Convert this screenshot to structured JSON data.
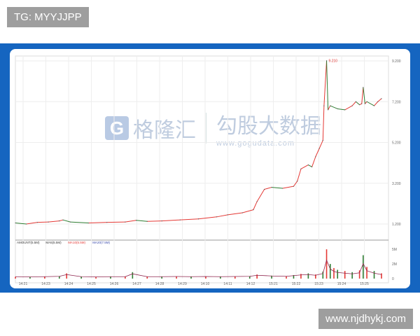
{
  "tag_label": "TG: MYYJJPP",
  "site_label": "www.njdhykj.com",
  "watermark": {
    "logo_letter": "G",
    "brand_cn": "格隆汇",
    "brand2_cn": "勾股大数据",
    "brand2_url": "www.gogudata.com"
  },
  "colors": {
    "band": "#1565c0",
    "up": "#e53935",
    "down": "#2e7d32",
    "ma_red": "#e53935",
    "ma_blue": "#3949ab"
  },
  "chart_data": [
    {
      "type": "line",
      "title": "",
      "peak_label": "9.210",
      "y_ticks": [
        "9.200",
        "7.200",
        "5.200",
        "3.200",
        "1.200"
      ],
      "ylim": [
        1.0,
        9.3
      ],
      "grid": true,
      "x_tick_labels": [
        "14:21",
        "14:23",
        "14:24",
        "14:25",
        "14:26",
        "14:27",
        "14:28",
        "14:29",
        "14:10",
        "14:11",
        "14:12",
        "15:21",
        "15:22",
        "15:23",
        "15:24",
        "15:25"
      ],
      "series": [
        {
          "x": [
            0,
            3,
            6,
            9,
            12,
            13,
            15,
            20,
            25,
            30,
            33,
            36,
            40,
            45,
            50,
            55,
            58,
            62,
            65,
            66,
            68,
            70,
            73,
            76,
            77,
            78,
            80,
            81,
            82,
            83,
            84,
            84.3,
            85,
            85.4,
            86,
            88,
            90,
            92,
            93,
            94,
            94.6,
            95,
            95.5,
            96,
            98,
            99,
            100
          ],
          "y": [
            1.25,
            1.2,
            1.28,
            1.3,
            1.35,
            1.4,
            1.3,
            1.25,
            1.28,
            1.3,
            1.38,
            1.33,
            1.35,
            1.4,
            1.45,
            1.55,
            1.65,
            1.75,
            1.9,
            2.3,
            2.9,
            3.0,
            2.95,
            3.05,
            3.3,
            3.9,
            4.1,
            4.0,
            4.5,
            4.9,
            5.3,
            7.0,
            9.21,
            6.8,
            7.0,
            6.85,
            6.8,
            7.0,
            7.2,
            7.05,
            7.1,
            7.9,
            7.1,
            7.2,
            7.0,
            7.2,
            7.35
          ]
        }
      ]
    },
    {
      "type": "bar",
      "legend": [
        "AMOUNT",
        "MA(5)",
        "MA(10)",
        "MA(20)"
      ],
      "legend_text": [
        "AMOUNT(5.5M)",
        "MA5(5.5M)",
        "MA10(5.5M)",
        "MA20(7.5M)"
      ],
      "y_ticks": [
        "5M",
        "2M",
        "0"
      ],
      "ylim": [
        0,
        5.5
      ],
      "x": [
        0,
        4,
        8,
        12,
        14,
        18,
        22,
        26,
        30,
        32,
        36,
        40,
        44,
        48,
        52,
        56,
        60,
        64,
        66,
        70,
        74,
        76,
        78,
        80,
        82,
        84,
        85,
        86,
        87,
        88,
        90,
        92,
        94,
        95,
        96,
        98,
        100
      ],
      "values": [
        0.3,
        0.25,
        0.3,
        0.4,
        0.9,
        0.3,
        0.25,
        0.3,
        0.3,
        1.1,
        0.3,
        0.3,
        0.35,
        0.3,
        0.35,
        0.3,
        0.35,
        0.4,
        0.7,
        0.5,
        0.4,
        0.6,
        0.8,
        0.9,
        0.7,
        1.2,
        5.0,
        2.5,
        1.8,
        1.5,
        1.3,
        1.1,
        1.4,
        4.0,
        2.0,
        1.3,
        0.9
      ]
    }
  ]
}
